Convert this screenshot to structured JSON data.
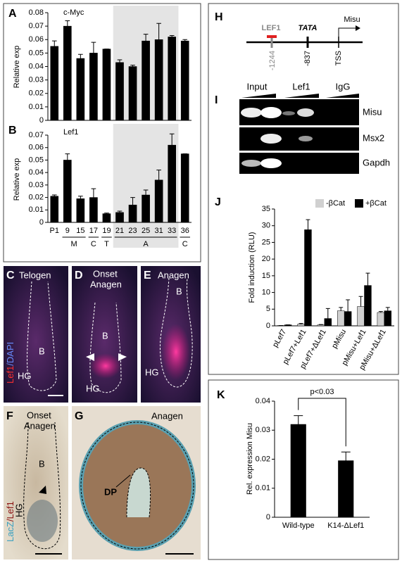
{
  "chart_data": [
    {
      "type": "bar",
      "panel": "A",
      "title": "c-Myc",
      "y_label": "Relative exp",
      "categories": [
        "P1",
        "9",
        "15",
        "17",
        "19",
        "21",
        "23",
        "25",
        "31",
        "33",
        "36"
      ],
      "values": [
        0.055,
        0.07,
        0.046,
        0.05,
        0.053,
        0.043,
        0.04,
        0.059,
        0.06,
        0.062,
        0.059
      ],
      "errors": [
        0.004,
        0.004,
        0.003,
        0.008,
        0,
        0.002,
        0.001,
        0.005,
        0.012,
        0.001,
        0.001
      ],
      "color": "#000000",
      "ylim": [
        0,
        0.08
      ],
      "yticks": [
        0,
        0.01,
        0.02,
        0.03,
        0.04,
        0.05,
        0.06,
        0.07,
        0.08
      ],
      "shaded": [
        "21",
        "33"
      ],
      "show_categories": false
    },
    {
      "type": "bar",
      "panel": "B",
      "title": "Lef1",
      "y_label": "Relative exp",
      "categories": [
        "P1",
        "9",
        "15",
        "17",
        "19",
        "21",
        "23",
        "25",
        "31",
        "33",
        "36"
      ],
      "values": [
        0.021,
        0.05,
        0.019,
        0.02,
        0.007,
        0.008,
        0.014,
        0.022,
        0.034,
        0.062,
        0.055
      ],
      "errors": [
        0.001,
        0.005,
        0.002,
        0.007,
        0.0005,
        0.001,
        0.006,
        0.004,
        0.008,
        0.009,
        0
      ],
      "color": "#000000",
      "ylim": [
        0,
        0.07
      ],
      "yticks": [
        0,
        0.01,
        0.02,
        0.03,
        0.04,
        0.05,
        0.06,
        0.07
      ],
      "shaded": [
        "21",
        "33"
      ],
      "show_categories": true,
      "groups": [
        {
          "label": "M",
          "span": [
            "9",
            "15"
          ]
        },
        {
          "label": "C",
          "span": [
            "17",
            "17"
          ]
        },
        {
          "label": "T",
          "span": [
            "19",
            "19"
          ]
        },
        {
          "label": "A",
          "span": [
            "21",
            "33"
          ]
        },
        {
          "label": "C",
          "span": [
            "36",
            "36"
          ]
        }
      ]
    },
    {
      "type": "grouped_bar",
      "panel": "J",
      "y_label": "Fold induction (RLU)",
      "categories": [
        "pLef7",
        "pLef7+Lef1",
        "pLef7+ΔLef1",
        "pMisu",
        "pMisu+Lef1",
        "pMisu+ΔLef1"
      ],
      "series": [
        {
          "name": "-βCat",
          "color": "#d0d0d0",
          "values": [
            0.1,
            0.5,
            0.3,
            4.5,
            5.8,
            4.0
          ],
          "errors": [
            0,
            0.2,
            0.1,
            1.0,
            3.0,
            0.3
          ]
        },
        {
          "name": "+βCat",
          "color": "#000000",
          "values": [
            0.3,
            28.8,
            2.2,
            4.3,
            12.1,
            4.5
          ],
          "errors": [
            0,
            3.0,
            3.0,
            3.5,
            3.7,
            1.0
          ]
        }
      ],
      "ylim": [
        0,
        35
      ],
      "yticks": [
        0,
        5,
        10,
        15,
        20,
        25,
        30,
        35
      ],
      "legend": "top-right"
    },
    {
      "type": "bar",
      "panel": "K",
      "y_label": "Rel. expression Misu",
      "categories": [
        "Wild-type",
        "K14-ΔLef1"
      ],
      "values": [
        0.032,
        0.0195
      ],
      "errors": [
        0.003,
        0.003
      ],
      "color": "#000000",
      "ylim": [
        0,
        0.04
      ],
      "yticks": [
        0,
        0.01,
        0.02,
        0.03,
        0.04
      ],
      "annotation": "p<0.03",
      "show_categories": true
    }
  ],
  "panel_H": {
    "letter": "H",
    "texts": [
      "LEF1",
      "TATA",
      "Misu",
      "-1244",
      "-837",
      "TSS"
    ]
  },
  "panel_I": {
    "letter": "I",
    "lanes": [
      "Input",
      "Lef1",
      "IgG"
    ],
    "rows": [
      "Misu",
      "Msx2",
      "Gapdh"
    ]
  },
  "images": [
    {
      "letter": "C",
      "caption": [
        "Telogen"
      ],
      "stain": [
        "Lef1",
        "/DAPI"
      ],
      "labels": [
        "B",
        "HG"
      ]
    },
    {
      "letter": "D",
      "caption": [
        "Onset",
        "Anagen"
      ],
      "labels": [
        "B",
        "HG"
      ]
    },
    {
      "letter": "E",
      "caption": [
        "Anagen"
      ],
      "labels": [
        "B",
        "HG"
      ]
    },
    {
      "letter": "F",
      "caption": [
        "Onset",
        "Anagen"
      ],
      "stain": [
        "LacZ",
        "/Lef1"
      ],
      "labels": [
        "B",
        "HG"
      ]
    },
    {
      "letter": "G",
      "caption": [
        "Anagen"
      ],
      "labels": [
        "DP"
      ]
    }
  ]
}
